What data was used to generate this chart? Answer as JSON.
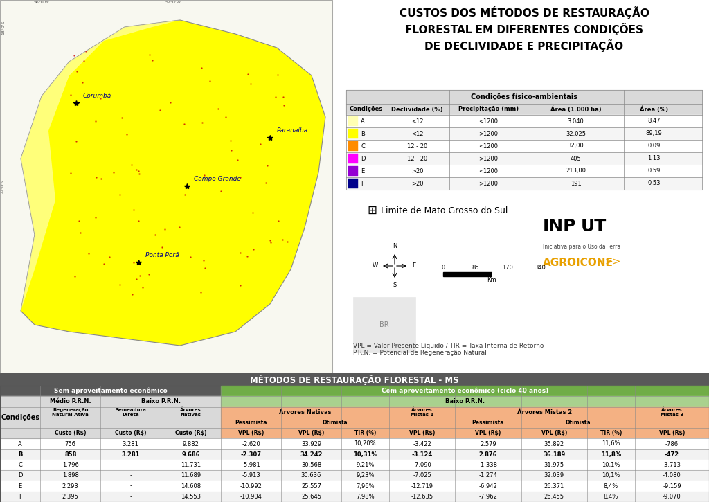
{
  "title_main": "CUSTOS DOS MÉTODOS DE RESTAURAÇÃO\nFLORESTAL EM DIFERENTES CONDIÇÕES\nDE DECLIVIDADE E PRECIPITAÇÃO",
  "condições_fisico_title": "Condições físico-ambientais",
  "condições_colors": [
    "#ffffb3",
    "#ffff00",
    "#ff8c00",
    "#ff00ff",
    "#9400d3",
    "#00008b"
  ],
  "condições_labels": [
    "A",
    "B",
    "C",
    "D",
    "E",
    "F"
  ],
  "condições_declividade": [
    "<12",
    "<12",
    "12 - 20",
    "12 - 20",
    ">20",
    ">20"
  ],
  "condições_precipitacao": [
    "<1200",
    ">1200",
    "<1200",
    ">1200",
    "<1200",
    ">1200"
  ],
  "condições_area1000": [
    "3.040",
    "32.025",
    "32,00",
    "405",
    "213,00",
    "191"
  ],
  "condições_area_pct": [
    "8,47",
    "89,19",
    "0,09",
    "1,13",
    "0,59",
    "0,53"
  ],
  "limite_label": "Limite de Mato Grosso do Sul",
  "footnote": "VPL = Valor Presente Líquido / TIR = Taxa Interna de Retorno\nP.R.N. = Potencial de Regeneração Natural",
  "table_title": "MÉTODOS DE RESTAURAÇÃO FLORESTAL - MS",
  "sem_aproveitamento_header": "Sem aproveitamento econômico",
  "com_aproveitamento_header": "Com aproveitamento econômico (ciclo 40 anos)",
  "baixo_prn_label": "Baixo P.R.N.",
  "medio_prn_label": "Médio P.R.N.",
  "rows": [
    [
      "A",
      "756",
      "3.281",
      "9.882",
      "-2.620",
      "33.929",
      "10,20%",
      "-3.422",
      "2.579",
      "35.892",
      "11,6%",
      "-786"
    ],
    [
      "B",
      "858",
      "3.281",
      "9.686",
      "-2.307",
      "34.242",
      "10,31%",
      "-3.124",
      "2.876",
      "36.189",
      "11,8%",
      "-472"
    ],
    [
      "C",
      "1.796",
      "-",
      "11.731",
      "-5.981",
      "30.568",
      "9,21%",
      "-7.090",
      "-1.338",
      "31.975",
      "10,1%",
      "-3.713"
    ],
    [
      "D",
      "1.898",
      "-",
      "11.689",
      "-5.913",
      "30.636",
      "9,23%",
      "-7.025",
      "-1.274",
      "32.039",
      "10,1%",
      "-4.080"
    ],
    [
      "E",
      "2.293",
      "-",
      "14.608",
      "-10.992",
      "25.557",
      "7,96%",
      "-12.719",
      "-6.942",
      "26.371",
      "8,4%",
      "-9.159"
    ],
    [
      "F",
      "2.395",
      "-",
      "14.553",
      "-10.904",
      "25.645",
      "7,98%",
      "-12.635",
      "-7.962",
      "26.455",
      "8,4%",
      "-9.070"
    ]
  ],
  "bold_row": 1,
  "c_dark_gray": "#595959",
  "c_green": "#70ad47",
  "c_salmon": "#f4b183",
  "c_light_gray": "#d9d9d9",
  "c_light_green": "#a9d18e",
  "c_white": "#ffffff",
  "c_alt_row": "#f2f2f2",
  "map_bg": "#f0f0e8"
}
